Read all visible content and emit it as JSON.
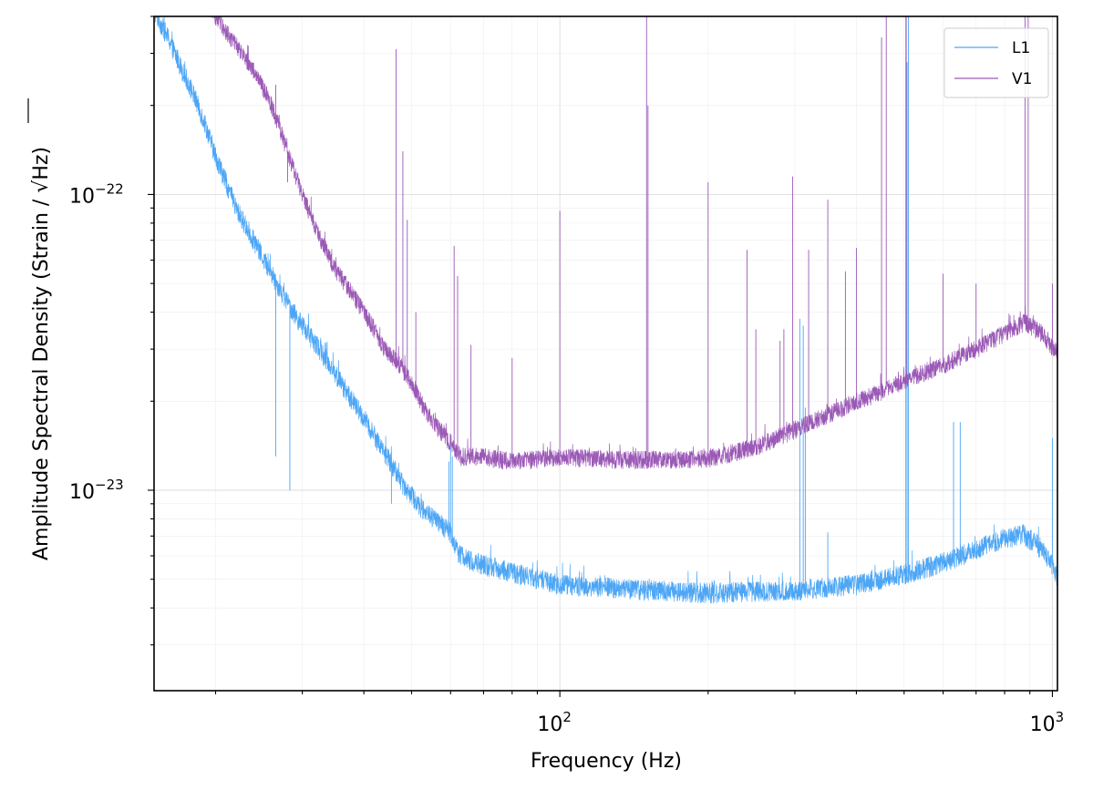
{
  "chart_data": {
    "type": "line",
    "xscale": "log",
    "yscale": "log",
    "xlim": [
      15,
      1024
    ],
    "ylim": [
      2.1e-24,
      4e-22
    ],
    "xlabel": "Frequency (Hz)",
    "ylabel": "Amplitude Spectral Density (Strain / √Hz)",
    "ylabel_parts": {
      "before": "Amplitude Spectral Density (Strain / ",
      "sqrt_arg": "Hz",
      "after": ")"
    },
    "x_major_ticks": [
      {
        "value": 100,
        "base": "10",
        "exp": "2"
      },
      {
        "value": 1000,
        "base": "10",
        "exp": "3"
      }
    ],
    "y_major_ticks": [
      {
        "value": 1e-22,
        "base": "10",
        "exp": "−22"
      },
      {
        "value": 1e-23,
        "base": "10",
        "exp": "−23"
      }
    ],
    "grid": true,
    "legend_position": "top-right",
    "series": [
      {
        "name": "L1",
        "color": "#4da6f5",
        "baseline": [
          [
            15,
            4.2e-22
          ],
          [
            16,
            3.4e-22
          ],
          [
            17,
            2.7e-22
          ],
          [
            18,
            2.2e-22
          ],
          [
            19,
            1.75e-22
          ],
          [
            20,
            1.35e-22
          ],
          [
            21,
            1.1e-22
          ],
          [
            22,
            9e-23
          ],
          [
            24,
            6.9e-23
          ],
          [
            26,
            5.4e-23
          ],
          [
            28,
            4.3e-23
          ],
          [
            30,
            3.6e-23
          ],
          [
            33,
            2.9e-23
          ],
          [
            36,
            2.3e-23
          ],
          [
            40,
            1.75e-23
          ],
          [
            44,
            1.35e-23
          ],
          [
            48,
            1.05e-23
          ],
          [
            52,
            8.8e-24
          ],
          [
            56,
            7.9e-24
          ],
          [
            60,
            7.2e-24
          ],
          [
            62,
            6.2e-24
          ],
          [
            65,
            5.8e-24
          ],
          [
            70,
            5.6e-24
          ],
          [
            80,
            5.3e-24
          ],
          [
            90,
            5e-24
          ],
          [
            100,
            4.8e-24
          ],
          [
            150,
            4.6e-24
          ],
          [
            200,
            4.5e-24
          ],
          [
            300,
            4.6e-24
          ],
          [
            400,
            4.8e-24
          ],
          [
            500,
            5.2e-24
          ],
          [
            600,
            5.7e-24
          ],
          [
            700,
            6.3e-24
          ],
          [
            800,
            6.9e-24
          ],
          [
            870,
            7.1e-24
          ],
          [
            930,
            6.6e-24
          ],
          [
            1000,
            5.6e-24
          ],
          [
            1024,
            5e-24
          ]
        ],
        "noise_fraction": 0.08,
        "spikes": [
          [
            26.5,
            1.3e-23
          ],
          [
            28.3,
            1e-23
          ],
          [
            45.5,
            9e-24
          ],
          [
            59.5,
            1.25e-23
          ],
          [
            60,
            1.45e-23
          ],
          [
            60.5,
            1.3e-23
          ],
          [
            307,
            3.8e-23
          ],
          [
            312,
            3.6e-23
          ],
          [
            315,
            1.9e-23
          ],
          [
            350,
            7.2e-24
          ],
          [
            504,
            4e-22
          ],
          [
            507,
            2.8e-22
          ],
          [
            510,
            4e-22
          ],
          [
            630,
            1.7e-23
          ],
          [
            650,
            1.7e-23
          ],
          [
            1000,
            1.5e-23
          ]
        ]
      },
      {
        "name": "V1",
        "color": "#9b59b6",
        "baseline": [
          [
            15,
            6e-22
          ],
          [
            18,
            5e-22
          ],
          [
            20,
            4e-22
          ],
          [
            22,
            3.2e-22
          ],
          [
            24,
            2.6e-22
          ],
          [
            26,
            2e-22
          ],
          [
            28,
            1.4e-22
          ],
          [
            30,
            1e-22
          ],
          [
            32,
            7.6e-23
          ],
          [
            35,
            5.6e-23
          ],
          [
            38,
            4.6e-23
          ],
          [
            40,
            4e-23
          ],
          [
            42,
            3.5e-23
          ],
          [
            44,
            3e-23
          ],
          [
            47,
            2.7e-23
          ],
          [
            50,
            2.3e-23
          ],
          [
            53,
            1.9e-23
          ],
          [
            56,
            1.65e-23
          ],
          [
            60,
            1.45e-23
          ],
          [
            63,
            1.3e-23
          ],
          [
            70,
            1.3e-23
          ],
          [
            80,
            1.25e-23
          ],
          [
            100,
            1.3e-23
          ],
          [
            130,
            1.27e-23
          ],
          [
            160,
            1.27e-23
          ],
          [
            200,
            1.28e-23
          ],
          [
            250,
            1.4e-23
          ],
          [
            300,
            1.6e-23
          ],
          [
            350,
            1.8e-23
          ],
          [
            400,
            2e-23
          ],
          [
            450,
            2.15e-23
          ],
          [
            500,
            2.35e-23
          ],
          [
            600,
            2.65e-23
          ],
          [
            700,
            3e-23
          ],
          [
            800,
            3.4e-23
          ],
          [
            880,
            3.7e-23
          ],
          [
            950,
            3.4e-23
          ],
          [
            1000,
            3.05e-23
          ],
          [
            1024,
            2.9e-23
          ]
        ],
        "noise_fraction": 0.07,
        "spikes": [
          [
            17.5,
            4e-22
          ],
          [
            26.5,
            2.35e-22
          ],
          [
            28,
            1.1e-22
          ],
          [
            36.5,
            4.9e-23
          ],
          [
            43.5,
            3.3e-23
          ],
          [
            46.5,
            3.1e-22
          ],
          [
            48,
            1.4e-22
          ],
          [
            49,
            8.2e-23
          ],
          [
            51,
            4e-23
          ],
          [
            61,
            6.7e-23
          ],
          [
            62,
            5.3e-23
          ],
          [
            66,
            3.1e-23
          ],
          [
            80,
            2.8e-23
          ],
          [
            100,
            8.8e-23
          ],
          [
            150,
            4e-22
          ],
          [
            151,
            2e-22
          ],
          [
            200,
            1.1e-22
          ],
          [
            240,
            6.5e-23
          ],
          [
            250,
            3.5e-23
          ],
          [
            280,
            3.2e-23
          ],
          [
            285,
            3.5e-23
          ],
          [
            297,
            1.15e-22
          ],
          [
            320,
            6.5e-23
          ],
          [
            350,
            9.6e-23
          ],
          [
            380,
            5.5e-23
          ],
          [
            400,
            6.6e-23
          ],
          [
            450,
            3.4e-22
          ],
          [
            460,
            4e-22
          ],
          [
            505,
            4e-22
          ],
          [
            600,
            5.4e-23
          ],
          [
            700,
            5e-23
          ],
          [
            880,
            4e-22
          ],
          [
            893,
            4e-22
          ],
          [
            1000,
            5e-23
          ]
        ]
      }
    ]
  }
}
